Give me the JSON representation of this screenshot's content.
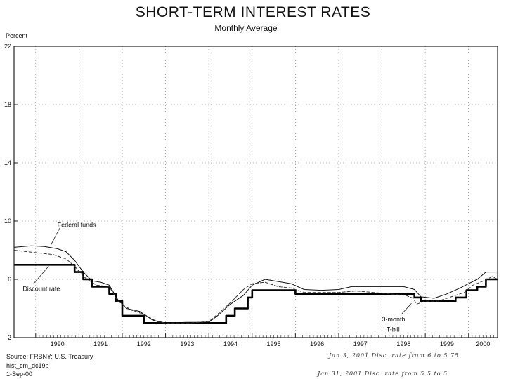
{
  "chart_data": {
    "type": "line",
    "title": "SHORT-TERM INTEREST RATES",
    "subtitle": "Monthly Average",
    "ylabel": "Percent",
    "xlabel": "",
    "ylim": [
      2,
      22
    ],
    "yticks": [
      2,
      6,
      10,
      14,
      18,
      22
    ],
    "xlim": [
      1989.5,
      2000.67
    ],
    "xticks": [
      1990,
      1991,
      1992,
      1993,
      1994,
      1995,
      1996,
      1997,
      1998,
      1999,
      2000
    ],
    "grid": true,
    "series": [
      {
        "name": "Federal funds",
        "x": [
          1989.5,
          1989.9,
          1990.2,
          1990.5,
          1990.7,
          1990.9,
          1991.1,
          1991.3,
          1991.5,
          1991.7,
          1991.9,
          1992.1,
          1992.4,
          1992.7,
          1993.0,
          1993.5,
          1994.0,
          1994.2,
          1994.5,
          1994.8,
          1995.0,
          1995.3,
          1995.6,
          1995.9,
          1996.2,
          1996.6,
          1997.0,
          1997.3,
          1997.7,
          1998.0,
          1998.5,
          1998.75,
          1998.9,
          1999.2,
          1999.5,
          1999.8,
          2000.0,
          2000.2,
          2000.4,
          2000.67
        ],
        "y": [
          8.2,
          8.3,
          8.25,
          8.1,
          7.9,
          7.3,
          6.5,
          5.9,
          5.8,
          5.6,
          4.6,
          4.0,
          3.8,
          3.2,
          3.0,
          3.05,
          3.05,
          3.5,
          4.3,
          4.9,
          5.6,
          6.0,
          5.85,
          5.7,
          5.3,
          5.25,
          5.3,
          5.5,
          5.5,
          5.5,
          5.5,
          5.3,
          4.8,
          4.7,
          5.0,
          5.4,
          5.7,
          6.0,
          6.5,
          6.5
        ]
      },
      {
        "name": "Discount rate",
        "x": [
          1989.5,
          1990.9,
          1990.9,
          1991.1,
          1991.1,
          1991.3,
          1991.3,
          1991.7,
          1991.7,
          1991.85,
          1991.85,
          1992.0,
          1992.0,
          1992.5,
          1992.5,
          1994.4,
          1994.4,
          1994.6,
          1994.6,
          1994.9,
          1994.9,
          1995.0,
          1995.0,
          1996.0,
          1996.0,
          1998.75,
          1998.75,
          1998.9,
          1998.9,
          1999.7,
          1999.7,
          1999.95,
          1999.95,
          2000.2,
          2000.2,
          2000.4,
          2000.4,
          2000.67
        ],
        "y": [
          7.0,
          7.0,
          6.5,
          6.5,
          6.0,
          6.0,
          5.5,
          5.5,
          5.0,
          5.0,
          4.5,
          4.5,
          3.5,
          3.5,
          3.0,
          3.0,
          3.5,
          3.5,
          4.0,
          4.0,
          4.75,
          4.75,
          5.25,
          5.25,
          5.0,
          5.0,
          4.75,
          4.75,
          4.5,
          4.5,
          4.75,
          4.75,
          5.25,
          5.25,
          5.5,
          5.5,
          6.0,
          6.0
        ]
      },
      {
        "name": "3-month T-bill",
        "x": [
          1989.5,
          1989.8,
          1990.1,
          1990.4,
          1990.7,
          1990.9,
          1991.1,
          1991.4,
          1991.7,
          1991.9,
          1992.2,
          1992.5,
          1992.8,
          1993.0,
          1993.5,
          1994.0,
          1994.2,
          1994.5,
          1994.8,
          1995.0,
          1995.3,
          1995.6,
          1995.9,
          1996.2,
          1996.6,
          1997.0,
          1997.4,
          1997.8,
          1998.2,
          1998.55,
          1998.72,
          1998.8,
          1999.0,
          1999.3,
          1999.6,
          1999.9,
          2000.1,
          2000.35,
          2000.55,
          2000.67
        ],
        "y": [
          8.0,
          7.9,
          7.8,
          7.7,
          7.4,
          6.9,
          6.2,
          5.6,
          5.5,
          4.5,
          3.9,
          3.6,
          3.1,
          3.0,
          3.0,
          3.1,
          3.6,
          4.4,
          5.3,
          5.7,
          5.8,
          5.5,
          5.4,
          5.1,
          5.1,
          5.1,
          5.2,
          5.1,
          5.0,
          4.9,
          4.7,
          4.3,
          4.5,
          4.5,
          4.8,
          5.1,
          5.6,
          5.9,
          6.2,
          6.0
        ]
      }
    ],
    "annotations": [
      {
        "label": "Federal funds",
        "x": 1990.5,
        "y": 9.6
      },
      {
        "label": "Discount rate",
        "x": 1989.7,
        "y": 5.2
      },
      {
        "label": "3-month",
        "x": 1998.0,
        "y": 3.1
      },
      {
        "label": "T-bill",
        "x": 1998.1,
        "y": 2.4
      }
    ]
  },
  "source": {
    "line1": "Source: FRBNY; U.S. Treasury",
    "line2": "hist_cm_dc19b",
    "line3": "1-Sep-00"
  },
  "handwriting": {
    "note1": "Jan 3, 2001  Disc. rate from 6 to 5.75",
    "note2": "Jan 31, 2001  Disc. rate from 5.5 to 5"
  }
}
